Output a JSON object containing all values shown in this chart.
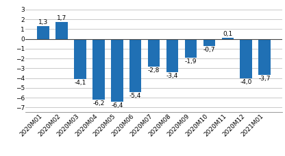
{
  "categories": [
    "2020M01",
    "2020M02",
    "2020M03",
    "2020M04",
    "2020M05",
    "2020M06",
    "2020M07",
    "2020M08",
    "2020M09",
    "2020M10",
    "2020M11",
    "2020M12",
    "2021M01"
  ],
  "values": [
    1.3,
    1.7,
    -4.1,
    -6.2,
    -6.4,
    -5.4,
    -2.8,
    -3.4,
    -1.9,
    -0.7,
    0.1,
    -4.0,
    -3.7
  ],
  "bar_color": "#2070b4",
  "ylim": [
    -7.5,
    3.5
  ],
  "yticks": [
    -7,
    -6,
    -5,
    -4,
    -3,
    -2,
    -1,
    0,
    1,
    2,
    3
  ],
  "label_fontsize": 6.5,
  "tick_fontsize": 6.5,
  "bg_color": "#ffffff",
  "grid_color": "#c0c0c0"
}
